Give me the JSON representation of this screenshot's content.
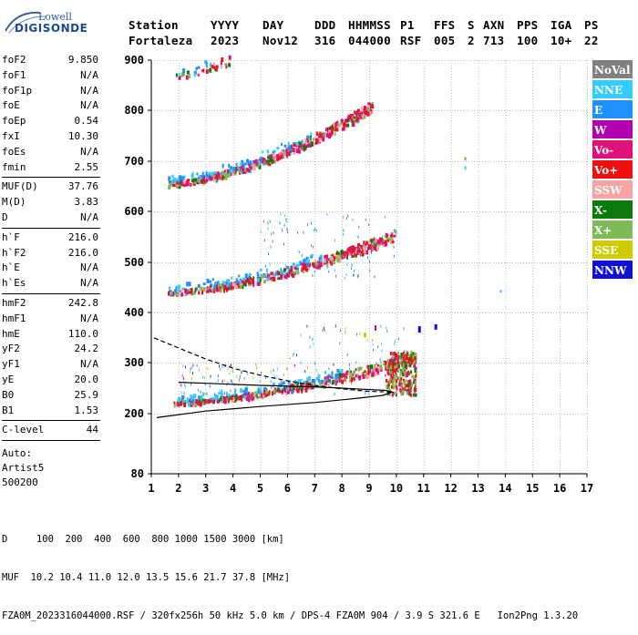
{
  "logo": {
    "top": "Lowell",
    "bottom": "DIGISONDE"
  },
  "header": {
    "labels": [
      "Station",
      "YYYY",
      "DAY",
      "DDD",
      "HHMMSS",
      "P1",
      "FFS",
      "S",
      "AXN",
      "PPS",
      "IGA",
      "PS"
    ],
    "values": [
      "Fortaleza",
      "2023",
      "Nov12",
      "316",
      "044000",
      "RSF",
      "005",
      "2",
      "713",
      "100",
      "10+",
      "22"
    ]
  },
  "params": {
    "group1": [
      {
        "label": "foF2",
        "value": "9.850"
      },
      {
        "label": "foF1",
        "value": "N/A"
      },
      {
        "label": "foF1p",
        "value": "N/A"
      },
      {
        "label": "foE",
        "value": "N/A"
      },
      {
        "label": "foEp",
        "value": "0.54"
      },
      {
        "label": "fxI",
        "value": "10.30"
      },
      {
        "label": "foEs",
        "value": "N/A"
      },
      {
        "label": "fmin",
        "value": "2.55"
      }
    ],
    "group2": [
      {
        "label": "MUF(D)",
        "value": "37.76"
      },
      {
        "label": "M(D)",
        "value": "3.83"
      },
      {
        "label": "D",
        "value": "N/A"
      }
    ],
    "group3": [
      {
        "label": "h`F",
        "value": "216.0"
      },
      {
        "label": "h`F2",
        "value": "216.0"
      },
      {
        "label": "h`E",
        "value": "N/A"
      },
      {
        "label": "h`Es",
        "value": "N/A"
      }
    ],
    "group4": [
      {
        "label": "hmF2",
        "value": "242.8"
      },
      {
        "label": "hmF1",
        "value": "N/A"
      },
      {
        "label": "hmE",
        "value": "110.0"
      },
      {
        "label": "yF2",
        "value": "24.2"
      },
      {
        "label": "yF1",
        "value": "N/A"
      },
      {
        "label": "yE",
        "value": "20.0"
      },
      {
        "label": "B0",
        "value": "25.9"
      },
      {
        "label": "B1",
        "value": "1.53"
      }
    ],
    "group5": [
      {
        "label": "C-level",
        "value": "44"
      }
    ],
    "auto_lines": [
      "Auto:",
      "Artist5",
      "500200"
    ]
  },
  "legend": [
    {
      "label": "NoVal",
      "color": "#808080"
    },
    {
      "label": "NNE",
      "color": "#33ccff"
    },
    {
      "label": "E",
      "color": "#1e90ff"
    },
    {
      "label": "W",
      "color": "#b000b0"
    },
    {
      "label": "Vo-",
      "color": "#e0107a"
    },
    {
      "label": "Vo+",
      "color": "#ee1010"
    },
    {
      "label": "SSW",
      "color": "#f5a3a3"
    },
    {
      "label": "X-",
      "color": "#0b7a0b"
    },
    {
      "label": "X+",
      "color": "#7dba55"
    },
    {
      "label": "SSE",
      "color": "#cccc00"
    },
    {
      "label": "NNW",
      "color": "#1010d0"
    }
  ],
  "chart_data": {
    "type": "scatter",
    "title": "",
    "xlabel": "",
    "ylabel": "",
    "xlim": [
      1,
      17
    ],
    "ylim": [
      80,
      900
    ],
    "x_ticks": [
      1,
      2,
      3,
      4,
      5,
      6,
      7,
      8,
      9,
      10,
      11,
      12,
      13,
      14,
      15,
      16,
      17
    ],
    "y_ticks": [
      80,
      200,
      300,
      400,
      500,
      600,
      700,
      800,
      900
    ],
    "grid": true,
    "echo_traces": [
      {
        "name": "first hop",
        "x_start": 1.8,
        "x_end": 10.7,
        "y_start": 222,
        "y_end": 310
      },
      {
        "name": "second hop",
        "x_start": 1.6,
        "x_end": 9.9,
        "y_start": 440,
        "y_end": 550
      },
      {
        "name": "third hop",
        "x_start": 1.6,
        "x_end": 9.1,
        "y_start": 655,
        "y_end": 805
      },
      {
        "name": "fourth hop",
        "x_start": 1.9,
        "x_end": 3.9,
        "y_start": 870,
        "y_end": 900
      }
    ],
    "true_height_profile": {
      "points": [
        [
          1.2,
          192
        ],
        [
          3,
          205
        ],
        [
          5,
          214
        ],
        [
          7,
          222
        ],
        [
          8.5,
          230
        ],
        [
          9.5,
          236
        ],
        [
          9.85,
          242.8
        ],
        [
          9.6,
          246
        ],
        [
          8.5,
          249
        ],
        [
          7,
          253
        ],
        [
          5,
          256
        ],
        [
          3,
          260
        ],
        [
          2,
          262
        ]
      ]
    },
    "dashed_profile": {
      "points": [
        [
          1.1,
          350
        ],
        [
          2,
          330
        ],
        [
          3,
          308
        ],
        [
          4,
          290
        ],
        [
          5,
          276
        ],
        [
          6,
          265
        ],
        [
          7,
          256
        ],
        [
          8,
          249
        ],
        [
          9,
          244
        ],
        [
          9.85,
          242.8
        ]
      ]
    }
  },
  "footer": {
    "d_line": "D     100  200  400  600  800 1000 1500 3000 [km]",
    "muf_line": "MUF  10.2 10.4 11.0 12.0 13.5 15.6 21.7 37.8 [MHz]",
    "info_line": "FZA0M_2023316044000.RSF / 320fx256h 50 kHz 5.0 km / DPS-4 FZA0M 904 / 3.9 S 321.6 E   Ion2Png 1.3.20"
  }
}
